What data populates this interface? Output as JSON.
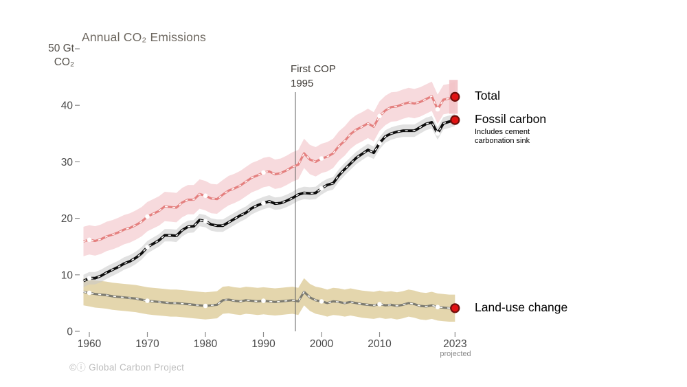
{
  "chart_data": {
    "type": "line",
    "title": "Annual CO₂ Emissions",
    "y_axis_unit_line1": "50 Gt",
    "y_axis_unit_line2": "CO₂",
    "ylim": [
      0,
      50
    ],
    "xlim": [
      1959,
      2023
    ],
    "grid": false,
    "x": [
      1959,
      1960,
      1961,
      1962,
      1963,
      1964,
      1965,
      1966,
      1967,
      1968,
      1969,
      1970,
      1971,
      1972,
      1973,
      1974,
      1975,
      1976,
      1977,
      1978,
      1979,
      1980,
      1981,
      1982,
      1983,
      1984,
      1985,
      1986,
      1987,
      1988,
      1989,
      1990,
      1991,
      1992,
      1993,
      1994,
      1995,
      1996,
      1997,
      1998,
      1999,
      2000,
      2001,
      2002,
      2003,
      2004,
      2005,
      2006,
      2007,
      2008,
      2009,
      2010,
      2011,
      2012,
      2013,
      2014,
      2015,
      2016,
      2017,
      2018,
      2019,
      2020,
      2021,
      2022,
      2023
    ],
    "ytick_labels": [
      0,
      10,
      20,
      30,
      40
    ],
    "ytick_marks": [
      0,
      10,
      20,
      30,
      40,
      50
    ],
    "xticks": [
      1960,
      1970,
      1980,
      1990,
      2000,
      2010,
      2023
    ],
    "marker_years": [
      1960,
      1970,
      1980,
      1990,
      2000,
      2010,
      2020
    ],
    "annotation": {
      "line1": "First COP",
      "line2": "1995",
      "year": 1995.5
    },
    "projected_label": "projected",
    "end_dot": {
      "fill": "#e11212",
      "stroke": "#6e100c"
    },
    "series": [
      {
        "id": "total",
        "name": "Total",
        "color": "#e4807f",
        "width": 3.2,
        "band": 2.6,
        "band_color": "#f2c2c6",
        "band_opacity": 0.6,
        "values": [
          15.9,
          16.2,
          16.0,
          16.3,
          16.8,
          17.1,
          17.5,
          18.0,
          18.3,
          18.8,
          19.4,
          20.3,
          20.8,
          21.3,
          22.1,
          22.0,
          21.9,
          22.8,
          23.3,
          23.3,
          24.3,
          24.0,
          23.5,
          23.4,
          24.2,
          24.9,
          25.3,
          25.8,
          26.5,
          27.2,
          27.6,
          28.1,
          28.3,
          27.8,
          28.0,
          28.5,
          29.1,
          29.5,
          31.5,
          30.4,
          30.0,
          30.6,
          30.9,
          31.5,
          32.8,
          33.7,
          34.9,
          35.7,
          36.2,
          36.8,
          36.2,
          38.1,
          39.1,
          39.7,
          39.8,
          40.2,
          40.5,
          40.3,
          40.6,
          41.1,
          41.6,
          39.3,
          41.0,
          41.2,
          41.5
        ]
      },
      {
        "id": "fossil",
        "name": "Fossil carbon",
        "note": "Includes cement carbonation sink",
        "color": "#0d0d0d",
        "width": 3.8,
        "band": 1.1,
        "band_color": "#c9c9c9",
        "band_opacity": 0.55,
        "values": [
          8.9,
          9.4,
          9.4,
          9.8,
          10.4,
          10.9,
          11.4,
          12.0,
          12.4,
          13.0,
          13.8,
          14.9,
          15.5,
          16.1,
          17.0,
          17.0,
          16.9,
          17.9,
          18.5,
          18.6,
          19.7,
          19.5,
          18.9,
          18.7,
          18.7,
          19.3,
          19.9,
          20.5,
          21.0,
          21.8,
          22.3,
          22.7,
          23.0,
          22.6,
          22.7,
          23.1,
          23.6,
          24.2,
          24.5,
          24.4,
          24.5,
          25.3,
          25.9,
          26.2,
          27.6,
          28.7,
          29.7,
          30.7,
          31.4,
          32.1,
          31.6,
          33.3,
          34.5,
          35.0,
          35.3,
          35.5,
          35.5,
          35.5,
          36.1,
          36.7,
          37.0,
          35.0,
          36.8,
          37.1,
          37.4
        ]
      },
      {
        "id": "landuse",
        "name": "Land-use change",
        "color": "#7c7b71",
        "width": 3.2,
        "band": 2.4,
        "band_color": "#d2ba77",
        "band_opacity": 0.6,
        "values": [
          7.0,
          6.8,
          6.6,
          6.5,
          6.4,
          6.2,
          6.1,
          6.0,
          5.9,
          5.8,
          5.6,
          5.4,
          5.3,
          5.2,
          5.1,
          5.0,
          5.0,
          4.9,
          4.8,
          4.7,
          4.6,
          4.5,
          4.6,
          4.7,
          5.5,
          5.6,
          5.4,
          5.3,
          5.5,
          5.4,
          5.3,
          5.4,
          5.3,
          5.2,
          5.3,
          5.4,
          5.5,
          5.3,
          7.0,
          6.0,
          5.5,
          5.3,
          5.0,
          5.3,
          5.2,
          5.0,
          5.2,
          5.0,
          4.8,
          4.7,
          4.6,
          4.8,
          4.6,
          4.7,
          4.5,
          4.7,
          5.0,
          4.8,
          4.5,
          4.4,
          4.6,
          4.3,
          4.2,
          4.1,
          4.1
        ]
      }
    ]
  },
  "legend": {
    "total": "Total",
    "fossil": "Fossil carbon",
    "fossil_note_line1": "Includes cement",
    "fossil_note_line2": "carbonation sink",
    "landuse": "Land-use change"
  },
  "attribution": "©ⓘ Global Carbon Project"
}
